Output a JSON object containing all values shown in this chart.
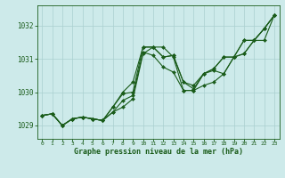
{
  "title": "Graphe pression niveau de la mer (hPa)",
  "background_color": "#cdeaea",
  "grid_color": "#aacfcf",
  "line_color": "#1a5c1a",
  "marker_color": "#1a5c1a",
  "xlim": [
    -0.5,
    23.5
  ],
  "ylim": [
    1028.6,
    1032.6
  ],
  "yticks": [
    1029,
    1030,
    1031,
    1032
  ],
  "xticks": [
    0,
    1,
    2,
    3,
    4,
    5,
    6,
    7,
    8,
    9,
    10,
    11,
    12,
    13,
    14,
    15,
    16,
    17,
    18,
    19,
    20,
    21,
    22,
    23
  ],
  "series": [
    [
      1029.3,
      1029.35,
      1029.0,
      1029.2,
      1029.25,
      1029.2,
      1029.15,
      1029.4,
      1029.55,
      1029.8,
      1031.15,
      1031.35,
      1031.35,
      1031.05,
      1030.05,
      1030.05,
      1030.2,
      1030.3,
      1030.55,
      1031.05,
      1031.15,
      1031.55,
      1031.55,
      1032.3
    ],
    [
      1029.3,
      1029.35,
      1029.0,
      1029.2,
      1029.25,
      1029.2,
      1029.15,
      1029.4,
      1029.75,
      1029.9,
      1031.2,
      1031.1,
      1030.75,
      1030.6,
      1030.05,
      1030.05,
      1030.55,
      1030.65,
      1030.55,
      1031.05,
      1031.15,
      1031.55,
      1031.9,
      1032.3
    ],
    [
      1029.3,
      1029.35,
      1029.0,
      1029.2,
      1029.25,
      1029.2,
      1029.15,
      1029.55,
      1029.95,
      1030.0,
      1031.35,
      1031.35,
      1031.05,
      1031.1,
      1030.3,
      1030.1,
      1030.55,
      1030.7,
      1031.05,
      1031.05,
      1031.55,
      1031.55,
      1031.9,
      1032.3
    ],
    [
      1029.3,
      1029.35,
      1029.0,
      1029.2,
      1029.25,
      1029.2,
      1029.15,
      1029.55,
      1030.0,
      1030.3,
      1031.35,
      1031.35,
      1031.05,
      1031.1,
      1030.3,
      1030.2,
      1030.55,
      1030.7,
      1031.05,
      1031.05,
      1031.55,
      1031.55,
      1031.9,
      1032.3
    ]
  ]
}
